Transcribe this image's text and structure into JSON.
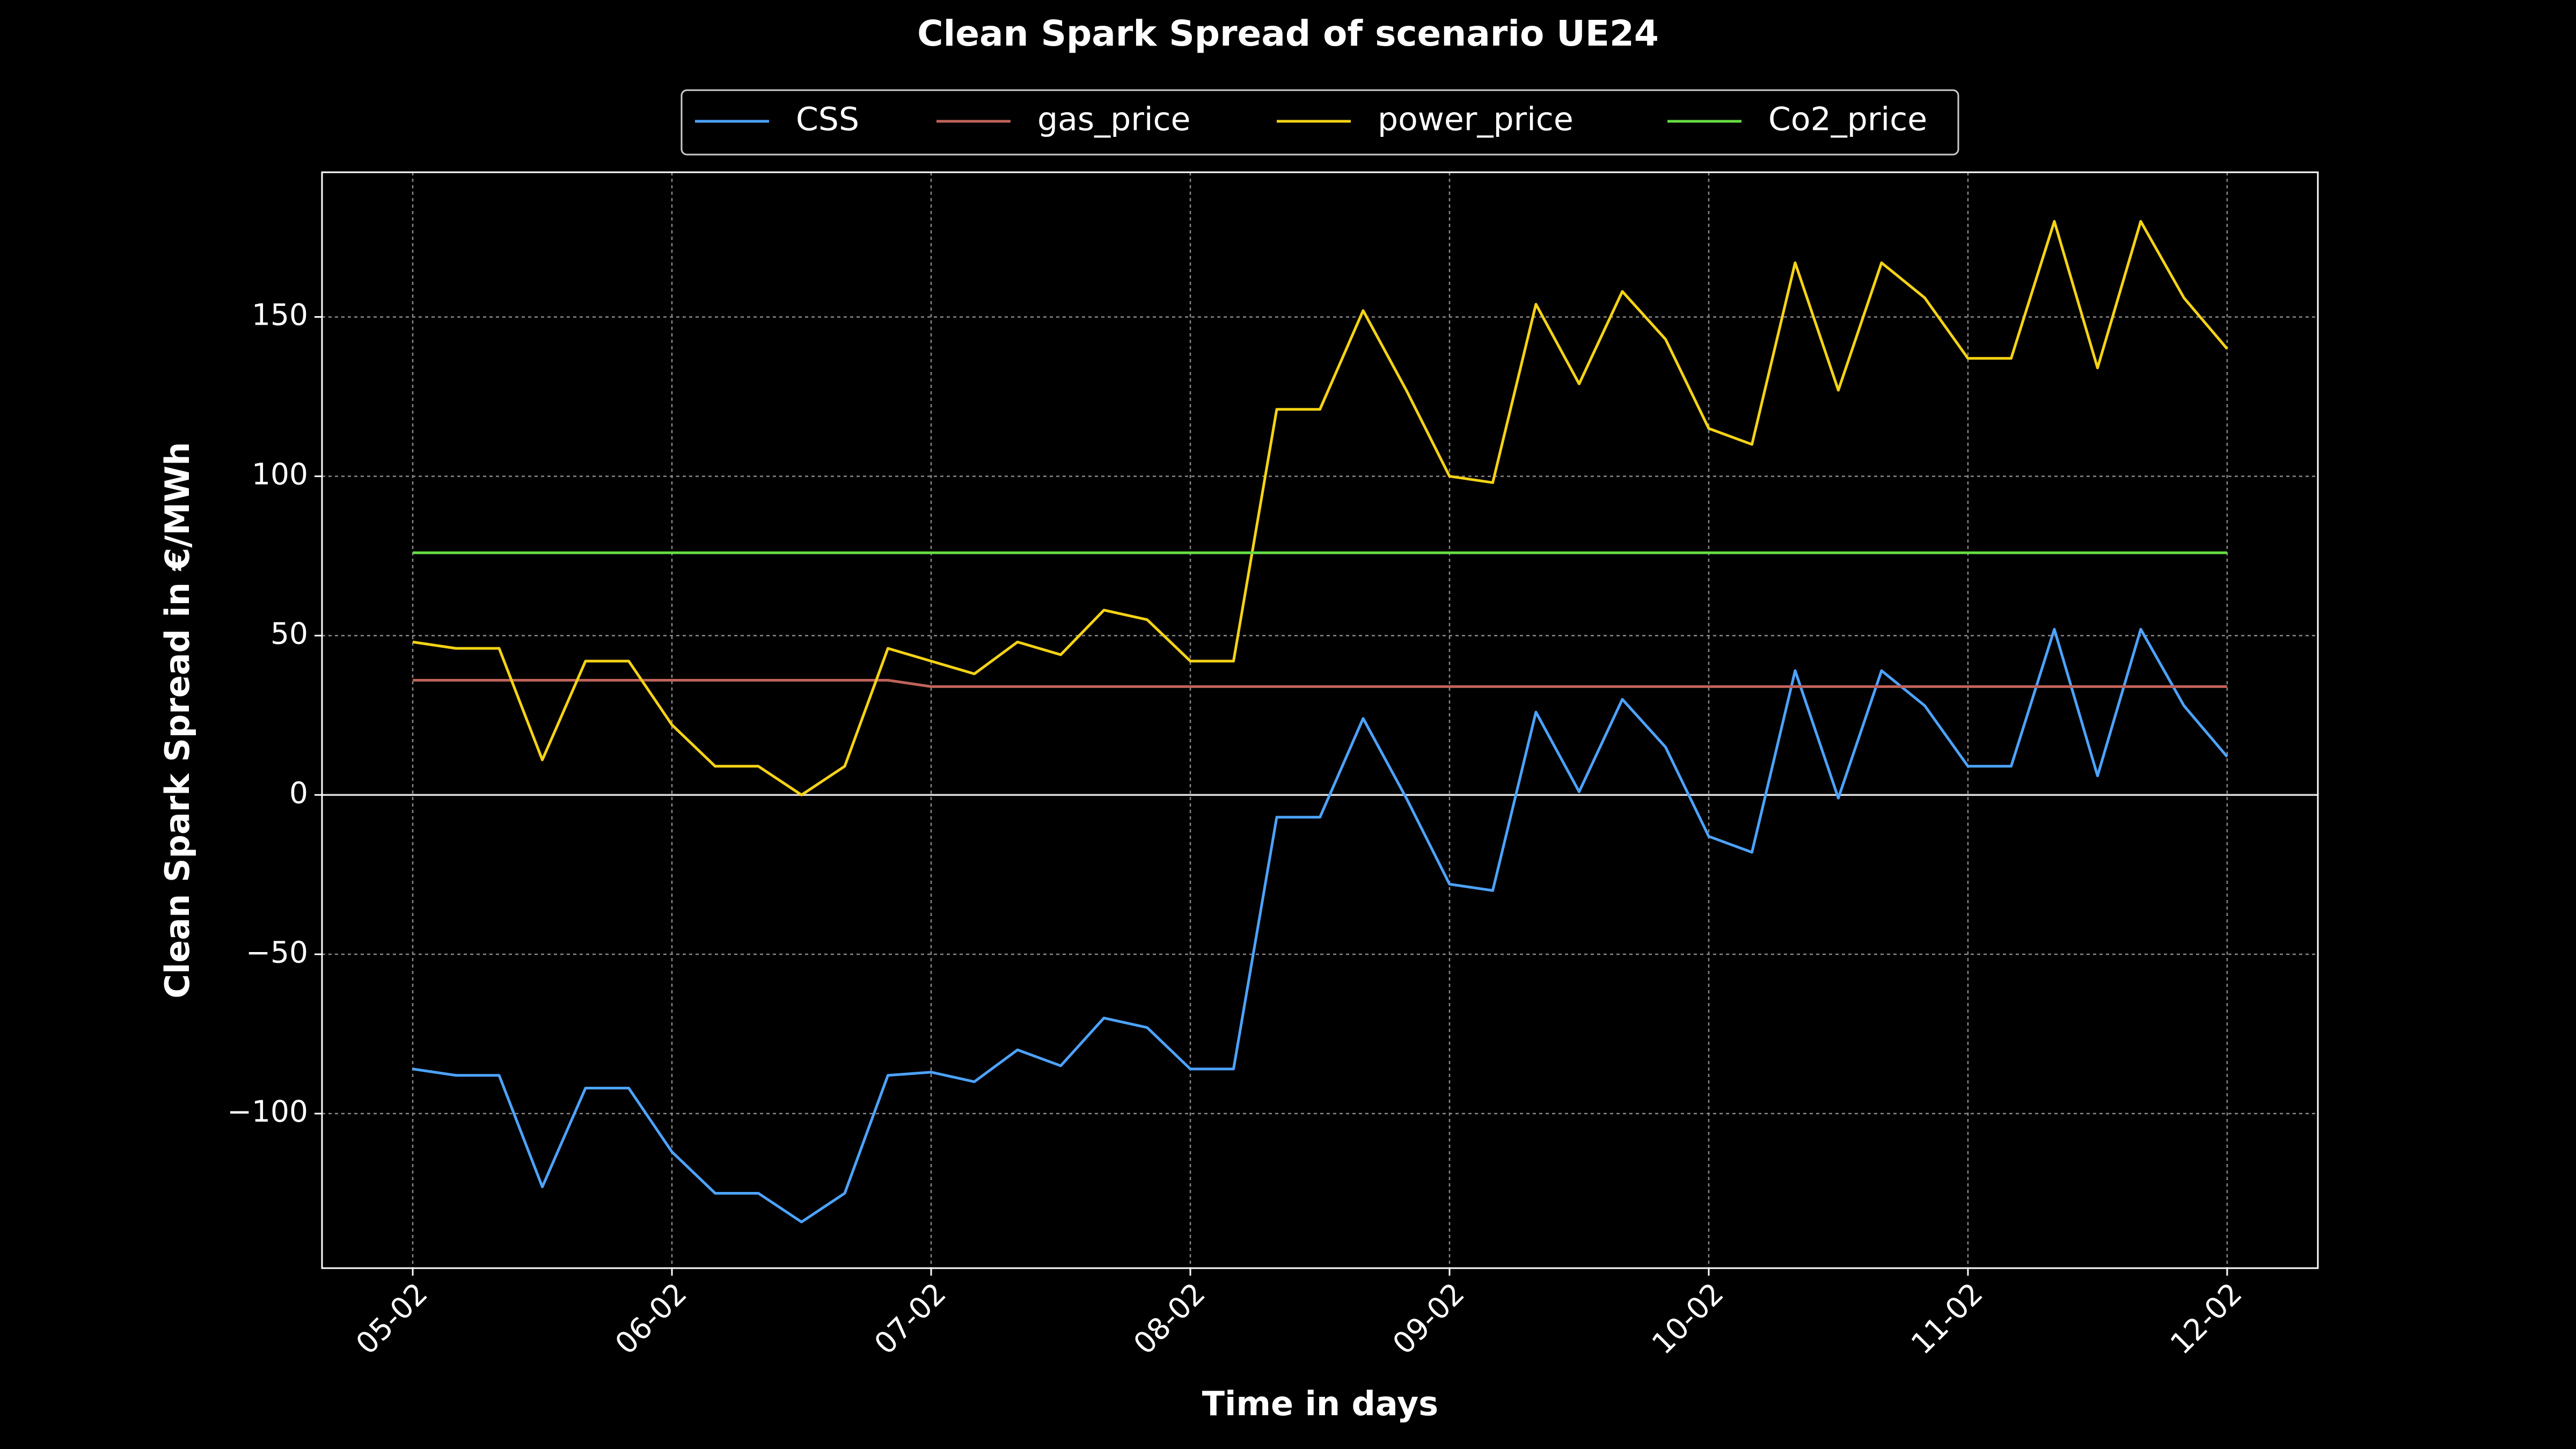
{
  "chart_data": {
    "type": "line",
    "title": "Clean Spark Spread of scenario UE24",
    "x_label": "Time in days",
    "y_label": "Clean Spark Spread in €/MWh",
    "x": [
      0,
      4,
      8,
      12,
      16,
      20,
      24,
      28,
      32,
      36,
      40,
      44,
      48,
      52,
      56,
      60,
      64,
      68,
      72,
      76,
      80,
      84,
      88,
      92,
      96,
      100,
      104,
      108,
      112,
      116,
      120,
      124,
      128,
      132,
      136,
      140,
      144,
      148,
      152,
      156,
      160,
      164,
      168
    ],
    "series": [
      {
        "name": "CSS",
        "color": "#4da3ff",
        "values": [
          -86,
          -88,
          -88,
          -123,
          -92,
          -92,
          -112,
          -125,
          -125,
          -134,
          -125,
          -88,
          -87,
          -90,
          -80,
          -85,
          -70,
          -73,
          -86,
          -86,
          -7,
          -7,
          24,
          -1,
          -28,
          -30,
          26,
          1,
          30,
          15,
          -13,
          -18,
          39,
          -1,
          39,
          28,
          9,
          9,
          52,
          6,
          52,
          28,
          12
        ]
      },
      {
        "name": "gas_price",
        "color": "#c0635a",
        "values": [
          36,
          36,
          36,
          36,
          36,
          36,
          36,
          36,
          36,
          36,
          36,
          36,
          34,
          34,
          34,
          34,
          34,
          34,
          34,
          34,
          34,
          34,
          34,
          34,
          34,
          34,
          34,
          34,
          34,
          34,
          34,
          34,
          34,
          34,
          34,
          34,
          34,
          34,
          34,
          34,
          34,
          34,
          34
        ]
      },
      {
        "name": "power_price",
        "color": "#f5d316",
        "values": [
          48,
          46,
          46,
          11,
          42,
          42,
          22,
          9,
          9,
          0,
          9,
          46,
          42,
          38,
          48,
          44,
          58,
          55,
          42,
          42,
          121,
          121,
          152,
          127,
          100,
          98,
          154,
          129,
          158,
          143,
          115,
          110,
          167,
          127,
          167,
          156,
          137,
          137,
          180,
          134,
          180,
          156,
          140
        ]
      },
      {
        "name": "Co2_price",
        "color": "#66dd44",
        "values": [
          76,
          76,
          76,
          76,
          76,
          76,
          76,
          76,
          76,
          76,
          76,
          76,
          76,
          76,
          76,
          76,
          76,
          76,
          76,
          76,
          76,
          76,
          76,
          76,
          76,
          76,
          76,
          76,
          76,
          76,
          76,
          76,
          76,
          76,
          76,
          76,
          76,
          76,
          76,
          76,
          76,
          76,
          76
        ]
      }
    ],
    "xlim": [
      -8.4,
      176.4
    ],
    "ylim": [
      -148.5,
      195.4
    ],
    "xticks": [
      {
        "value": 0,
        "label": "05-02"
      },
      {
        "value": 24,
        "label": "06-02"
      },
      {
        "value": 48,
        "label": "07-02"
      },
      {
        "value": 72,
        "label": "08-02"
      },
      {
        "value": 96,
        "label": "09-02"
      },
      {
        "value": 120,
        "label": "10-02"
      },
      {
        "value": 144,
        "label": "11-02"
      },
      {
        "value": 168,
        "label": "12-02"
      }
    ],
    "yticks": [
      {
        "value": -100,
        "label": "−100"
      },
      {
        "value": -50,
        "label": "−50"
      },
      0,
      50,
      100,
      150
    ],
    "hlines": [
      0
    ],
    "grid": true,
    "legend": "top-center"
  }
}
